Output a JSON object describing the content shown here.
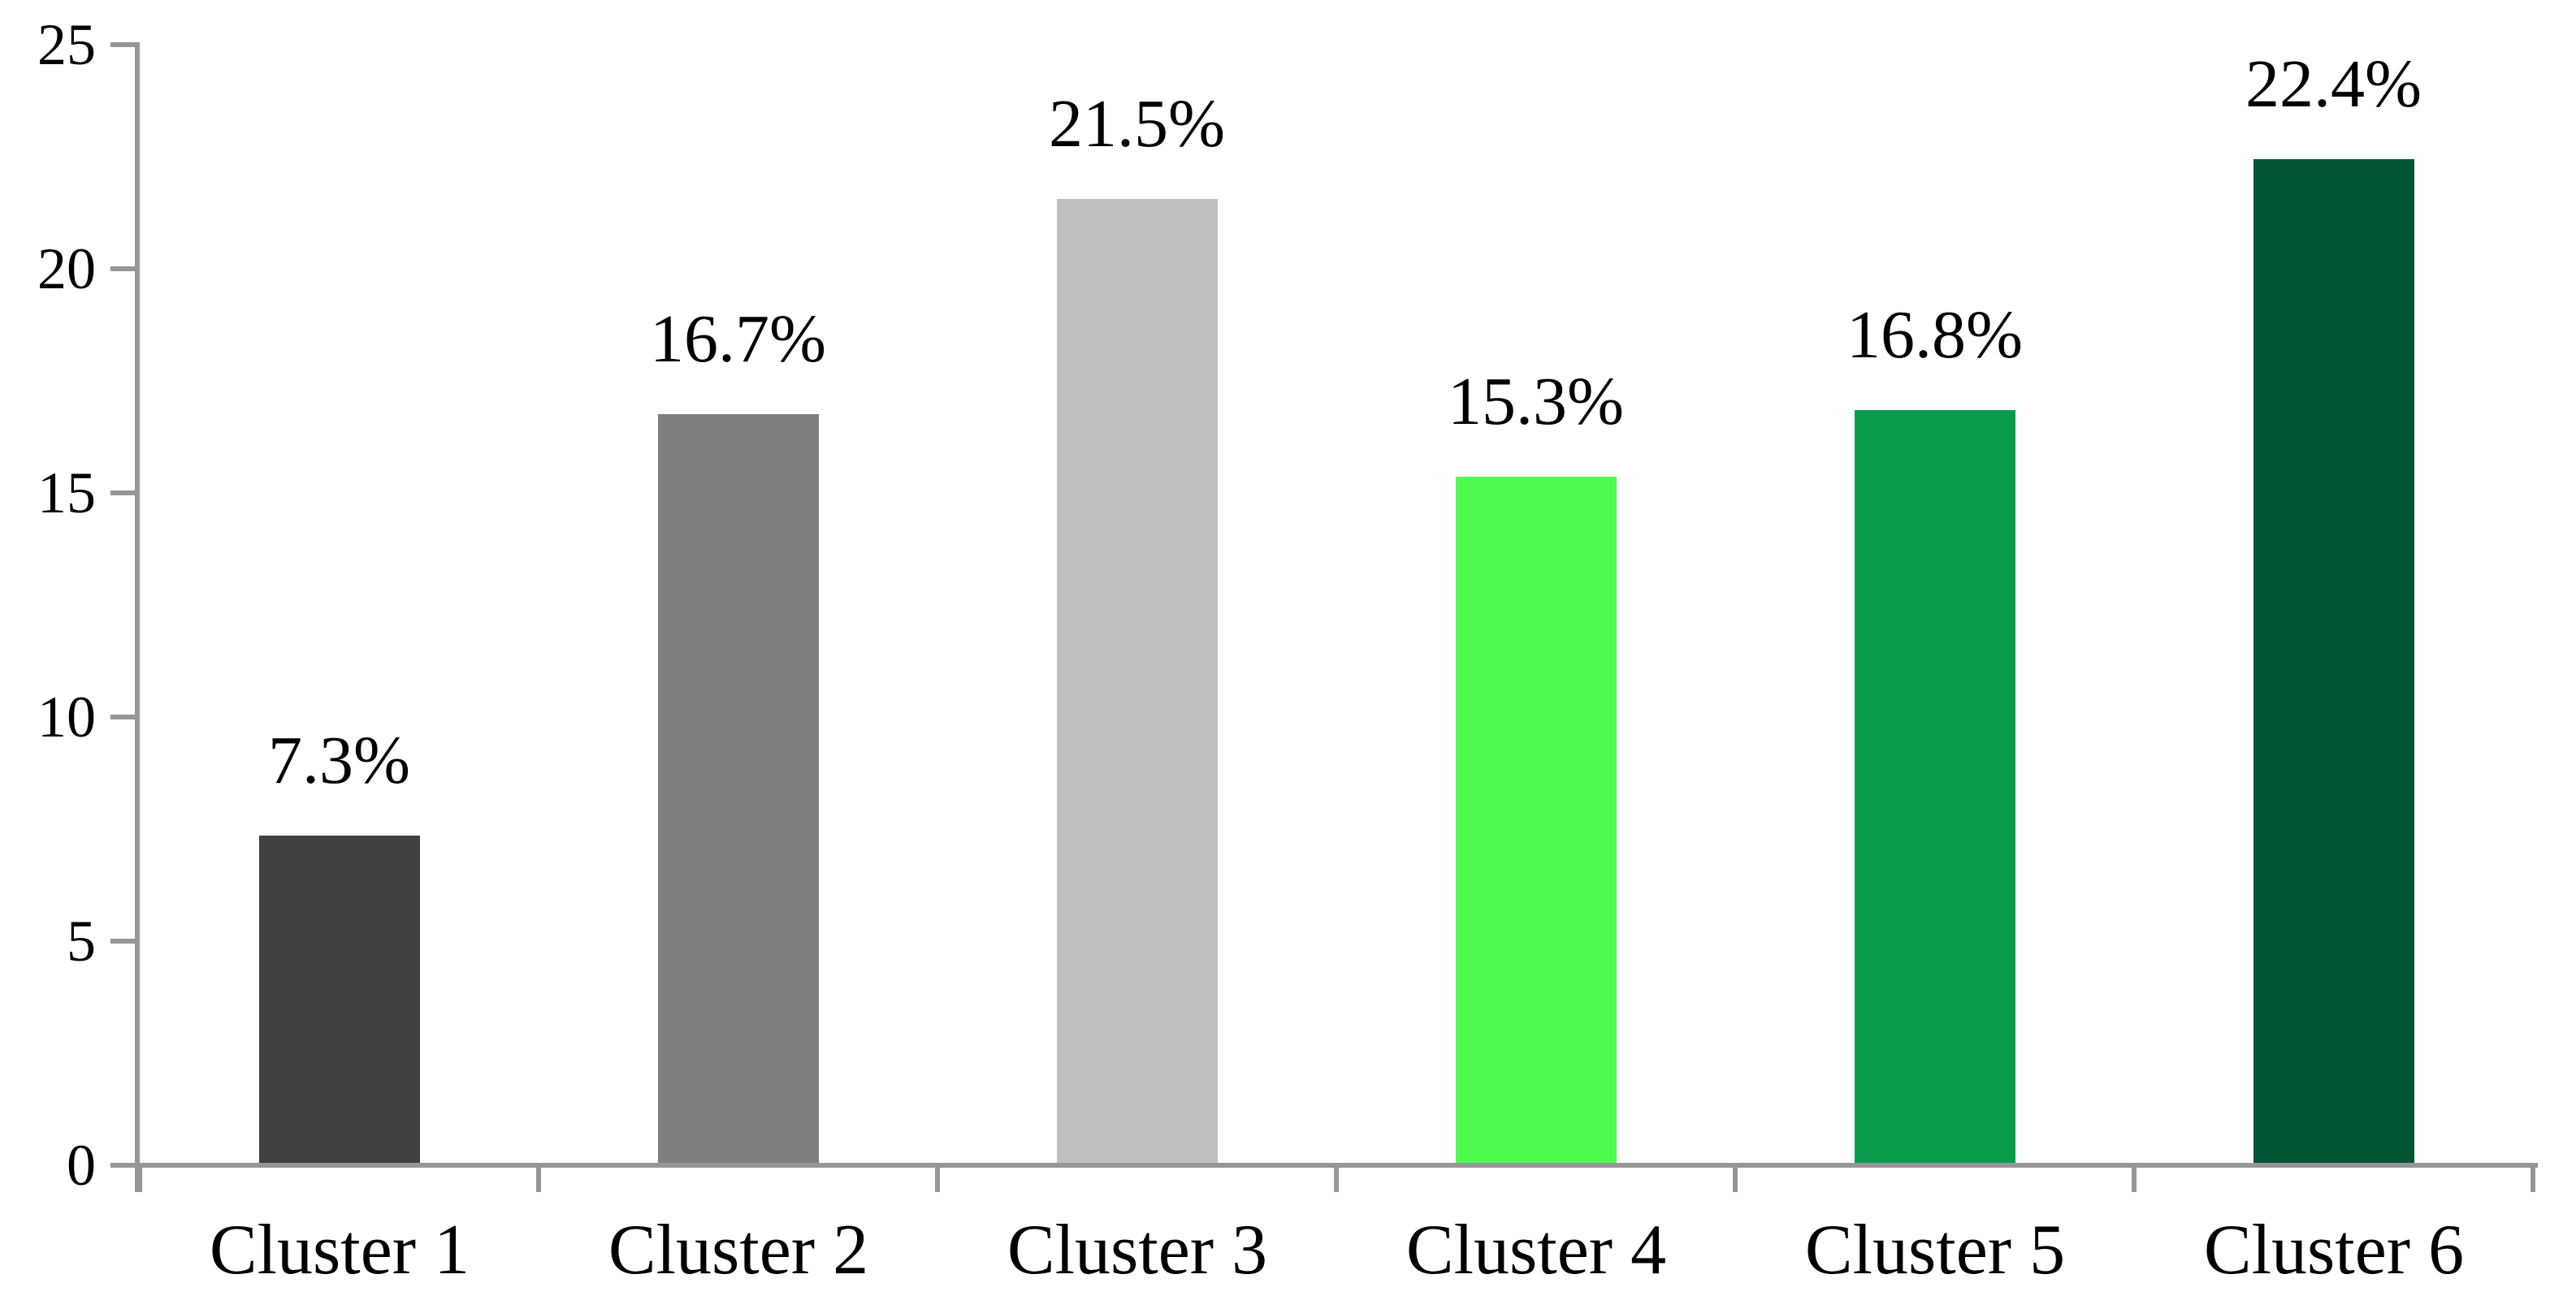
{
  "chart_data": {
    "type": "bar",
    "title": "",
    "xlabel": "",
    "ylabel": "",
    "categories": [
      "Cluster 1",
      "Cluster 2",
      "Cluster 3",
      "Cluster 4",
      "Cluster 5",
      "Cluster 6"
    ],
    "values": [
      7.3,
      16.7,
      21.5,
      15.3,
      16.8,
      22.4
    ],
    "value_labels": [
      "7.3%",
      "16.7%",
      "21.5%",
      "15.3%",
      "16.8%",
      "22.4%"
    ],
    "bar_colors": [
      "#404040",
      "#7F7F7F",
      "#BFBFBF",
      "#4DFB4D",
      "#0A9C4E",
      "#005632"
    ],
    "ylim": [
      0,
      25
    ],
    "yticks": [
      0,
      5,
      10,
      15,
      20,
      25
    ],
    "grid": false,
    "legend": "none",
    "axis_color": "#969696",
    "text_color": "#000000",
    "background_color": "#FFFFFF"
  }
}
